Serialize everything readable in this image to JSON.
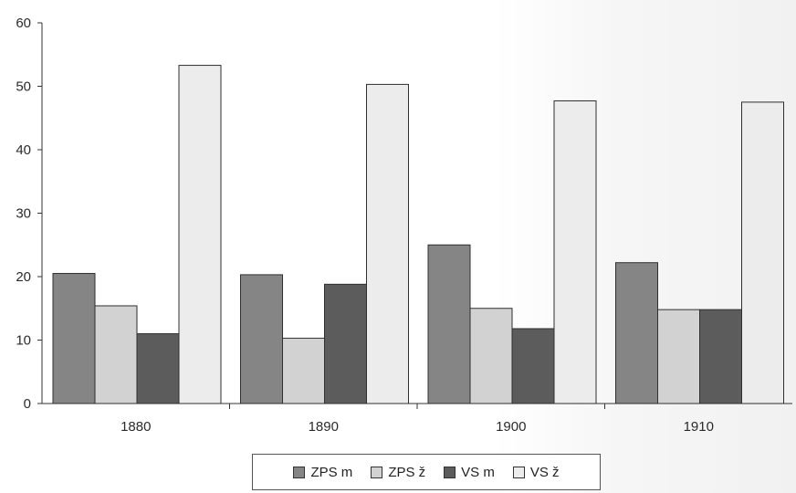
{
  "chart_data": {
    "type": "bar",
    "categories": [
      "1880",
      "1890",
      "1900",
      "1910"
    ],
    "series": [
      {
        "name": "ZPS m",
        "values": [
          20.5,
          20.3,
          25.0,
          22.2
        ],
        "color": "#858585"
      },
      {
        "name": "ZPS ž",
        "values": [
          15.4,
          10.3,
          15.0,
          14.8
        ],
        "color": "#d2d2d2"
      },
      {
        "name": "VS m",
        "values": [
          11.0,
          18.8,
          11.8,
          14.8
        ],
        "color": "#5c5c5c"
      },
      {
        "name": "VS ž",
        "values": [
          53.3,
          50.3,
          47.7,
          47.5
        ],
        "color": "#ececec"
      }
    ],
    "title": "",
    "xlabel": "",
    "ylabel": "",
    "ylim": [
      0,
      60
    ],
    "yticks": [
      "0",
      "10",
      "20",
      "30",
      "40",
      "50",
      "60"
    ],
    "grid": false,
    "legend_position": "bottom"
  }
}
